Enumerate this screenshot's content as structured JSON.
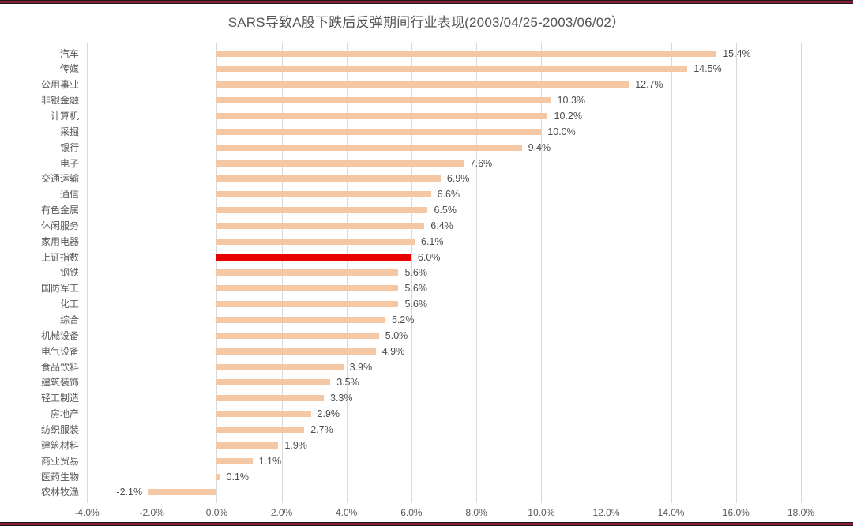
{
  "page": {
    "background": "#ffffff",
    "border_rule_color": "#8b2034"
  },
  "chart_data": {
    "type": "bar",
    "orientation": "horizontal",
    "title": "SARS导致A股下跌后反弹期间行业表现(2003/04/25-2003/06/02）",
    "categories": [
      "汽车",
      "传媒",
      "公用事业",
      "非银金融",
      "计算机",
      "采掘",
      "银行",
      "电子",
      "交通运输",
      "通信",
      "有色金属",
      "休闲服务",
      "家用电器",
      "上证指数",
      "钢铁",
      "国防军工",
      "化工",
      "综合",
      "机械设备",
      "电气设备",
      "食品饮料",
      "建筑装饰",
      "轻工制造",
      "房地产",
      "纺织服装",
      "建筑材料",
      "商业贸易",
      "医药生物",
      "农林牧渔"
    ],
    "values": [
      15.4,
      14.5,
      12.7,
      10.3,
      10.2,
      10.0,
      9.4,
      7.6,
      6.9,
      6.6,
      6.5,
      6.4,
      6.1,
      6.0,
      5.6,
      5.6,
      5.6,
      5.2,
      5.0,
      4.9,
      3.9,
      3.5,
      3.3,
      2.9,
      2.7,
      1.9,
      1.1,
      0.1,
      -2.1
    ],
    "value_labels": [
      "15.4%",
      "14.5%",
      "12.7%",
      "10.3%",
      "10.2%",
      "10.0%",
      "9.4%",
      "7.6%",
      "6.9%",
      "6.6%",
      "6.5%",
      "6.4%",
      "6.1%",
      "6.0%",
      "5.6%",
      "5.6%",
      "5.6%",
      "5.2%",
      "5.0%",
      "4.9%",
      "3.9%",
      "3.5%",
      "3.3%",
      "2.9%",
      "2.7%",
      "1.9%",
      "1.1%",
      "0.1%",
      "-2.1%"
    ],
    "highlight_category": "上证指数",
    "highlight_index": 13,
    "highlight_color": "#e60000",
    "bar_color": "#f5c8a5",
    "xlabel": "",
    "ylabel": "",
    "xlim": [
      -4,
      18
    ],
    "xtick_values": [
      -4,
      -2,
      0,
      2,
      4,
      6,
      8,
      10,
      12,
      14,
      16,
      18
    ],
    "xticks": [
      "-4.0%",
      "-2.0%",
      "0.0%",
      "2.0%",
      "4.0%",
      "6.0%",
      "8.0%",
      "10.0%",
      "12.0%",
      "14.0%",
      "16.0%",
      "18.0%"
    ],
    "grid": "vertical",
    "gridline_color": "#d9d9d9",
    "legend": "none"
  }
}
